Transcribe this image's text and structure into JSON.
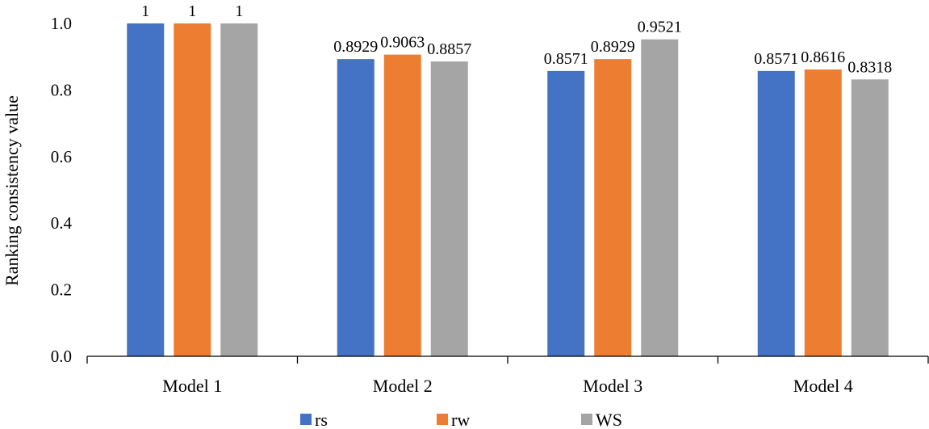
{
  "chart_data": {
    "type": "bar",
    "title": "",
    "xlabel": "",
    "ylabel": "Ranking consistency value",
    "ylim": [
      0,
      1.0
    ],
    "yticks": [
      "0.0",
      "0.2",
      "0.4",
      "0.6",
      "0.8",
      "1.0"
    ],
    "grid": false,
    "legend_position": "bottom",
    "categories": [
      "Model 1",
      "Model 2",
      "Model 3",
      "Model 4"
    ],
    "series": [
      {
        "name": "rs",
        "color": "#4472C4",
        "values": [
          1,
          0.8929,
          0.8571,
          0.8571
        ],
        "labels": [
          "1",
          "0.8929",
          "0.8571",
          "0.8571"
        ]
      },
      {
        "name": "rw",
        "color": "#ED7D31",
        "values": [
          1,
          0.9063,
          0.8929,
          0.8616
        ],
        "labels": [
          "1",
          "0.9063",
          "0.8929",
          "0.8616"
        ]
      },
      {
        "name": "WS",
        "color": "#A5A5A5",
        "values": [
          1,
          0.8857,
          0.9521,
          0.8318
        ],
        "labels": [
          "1",
          "0.8857",
          "0.9521",
          "0.8318"
        ]
      }
    ]
  }
}
